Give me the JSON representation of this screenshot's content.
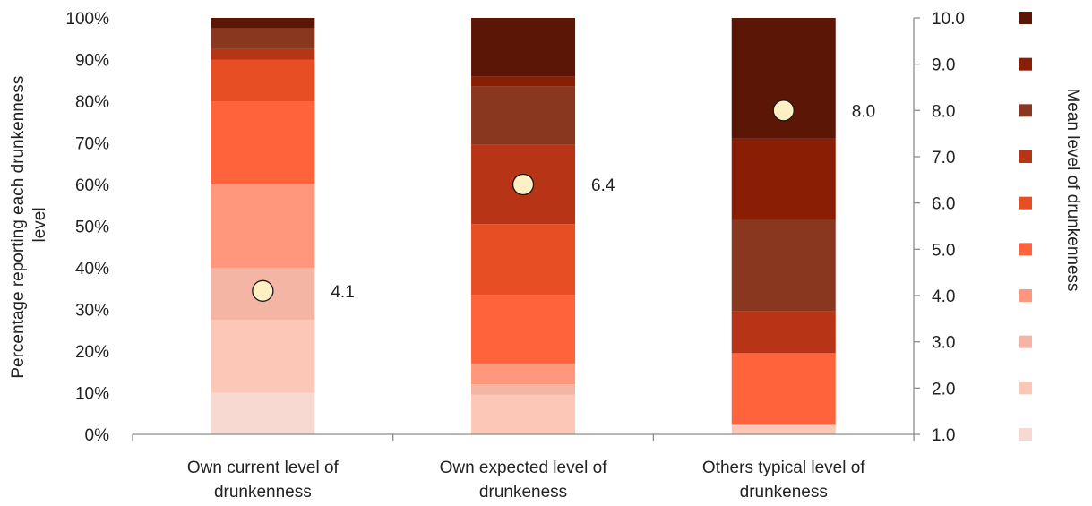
{
  "chart_data": {
    "type": "bar",
    "stacked": true,
    "categories": [
      [
        "Own current level of",
        "drunkenness"
      ],
      [
        "Own expected level of",
        "drunkeness"
      ],
      [
        "Others typical level of",
        "drunkeness"
      ]
    ],
    "ylabel": [
      "Percentage reporting each drunkenness",
      "level"
    ],
    "y2label": "Mean level of drunkenness",
    "ylim": [
      0,
      100
    ],
    "y2lim": [
      1,
      10
    ],
    "yticks": [
      "0%",
      "10%",
      "20%",
      "30%",
      "40%",
      "50%",
      "60%",
      "70%",
      "80%",
      "90%",
      "100%"
    ],
    "y2ticks": [
      "1.0",
      "2.0",
      "3.0",
      "4.0",
      "5.0",
      "6.0",
      "7.0",
      "8.0",
      "9.0",
      "10.0"
    ],
    "legend_position": "right",
    "series": [
      {
        "level": 1,
        "color": "#F7D9D2",
        "values": [
          10,
          0,
          0
        ]
      },
      {
        "level": 2,
        "color": "#FDC7B8",
        "values": [
          17.5,
          9.5,
          2.5
        ]
      },
      {
        "level": 3,
        "color": "#F5B5A4",
        "values": [
          12.5,
          2.5,
          0
        ]
      },
      {
        "level": 4,
        "color": "#FE977B",
        "values": [
          20,
          5,
          0
        ]
      },
      {
        "level": 5,
        "color": "#FE633B",
        "values": [
          20,
          16.5,
          17
        ]
      },
      {
        "level": 6,
        "color": "#E84E24",
        "values": [
          10,
          17,
          0
        ]
      },
      {
        "level": 7,
        "color": "#B73417",
        "values": [
          2.5,
          19,
          10
        ]
      },
      {
        "level": 8,
        "color": "#8A3720",
        "values": [
          5,
          14,
          22
        ]
      },
      {
        "level": 9,
        "color": "#8A1E04",
        "values": [
          0,
          2.5,
          19.5
        ]
      },
      {
        "level": 10,
        "color": "#5C1605",
        "values": [
          2.5,
          14,
          29
        ]
      }
    ],
    "means": {
      "values": [
        4.1,
        6.4,
        8.0
      ],
      "labels": [
        "4.1",
        "6.4",
        "8.0"
      ],
      "marker_color": "#FEF0C4"
    }
  }
}
